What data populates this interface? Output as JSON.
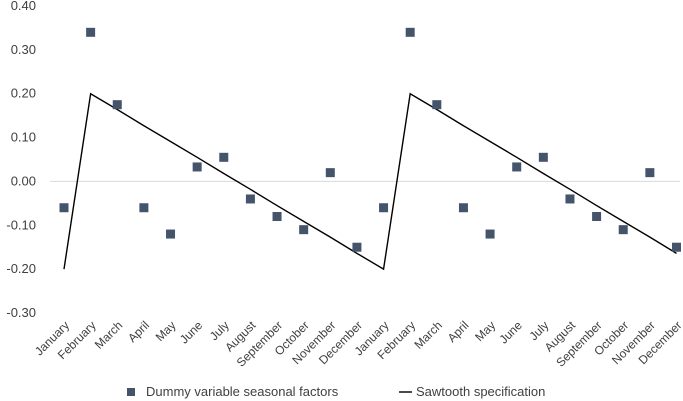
{
  "chart_data": {
    "type": "scatter+line",
    "title": "",
    "xlabel": "",
    "ylabel": "",
    "ylim": [
      -0.3,
      0.4
    ],
    "yticks": [
      "0.40",
      "0.30",
      "0.20",
      "0.10",
      "0.00",
      "-0.10",
      "-0.20",
      "-0.30"
    ],
    "ytick_values": [
      0.4,
      0.3,
      0.2,
      0.1,
      0.0,
      -0.1,
      -0.2,
      -0.3
    ],
    "categories": [
      "January",
      "February",
      "March",
      "April",
      "May",
      "June",
      "July",
      "August",
      "September",
      "October",
      "November",
      "December",
      "January",
      "February",
      "March",
      "April",
      "May",
      "June",
      "July",
      "August",
      "September",
      "October",
      "November",
      "December"
    ],
    "series": [
      {
        "name": "Dummy variable seasonal factors",
        "kind": "scatter",
        "color": "#44546a",
        "values": [
          -0.06,
          0.34,
          0.175,
          -0.06,
          -0.12,
          0.033,
          0.055,
          -0.04,
          -0.08,
          -0.11,
          0.02,
          -0.15,
          -0.06,
          0.34,
          0.175,
          -0.06,
          -0.12,
          0.033,
          0.055,
          -0.04,
          -0.08,
          -0.11,
          0.02,
          -0.15
        ]
      },
      {
        "name": "Sawtooth specification",
        "kind": "line",
        "color": "#000000",
        "values": [
          -0.2,
          0.2,
          0.164,
          0.127,
          0.091,
          0.055,
          0.018,
          -0.018,
          -0.055,
          -0.091,
          -0.127,
          -0.164,
          -0.2,
          0.2,
          0.164,
          0.127,
          0.091,
          0.055,
          0.018,
          -0.018,
          -0.055,
          -0.091,
          -0.127,
          -0.164
        ]
      }
    ],
    "legend": {
      "position": "bottom"
    },
    "grid": false
  }
}
